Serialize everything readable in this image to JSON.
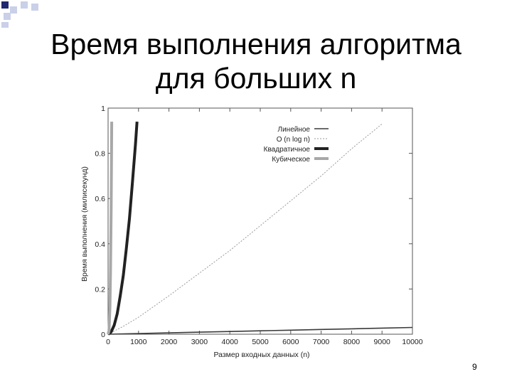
{
  "slide": {
    "title_line1": "Время выполнения алгоритма",
    "title_line2": "для больших n",
    "page_number": "9"
  },
  "colors": {
    "square_dark": "#1f2a6e",
    "square_light": "#c9d0e8",
    "linear": "#3a3a3a",
    "nlogn": "#9a9a9a",
    "quadratic": "#222222",
    "cubic": "#a8a8a8"
  },
  "chart_data": {
    "type": "line",
    "xlabel": "Размер входных данных (n)",
    "ylabel": "Время выполнения (милисекунд)",
    "xlim": [
      0,
      10000
    ],
    "ylim": [
      0,
      1
    ],
    "x_ticks": [
      "0",
      "1000",
      "2000",
      "3000",
      "4000",
      "5000",
      "6000",
      "7000",
      "8000",
      "9000",
      "10000"
    ],
    "y_ticks": [
      "0",
      "0.2",
      "0.4",
      "0.6",
      "0.8",
      "1"
    ],
    "legend_position": "top-right",
    "grid": false,
    "series": [
      {
        "name": "Линейное",
        "x": [
          0,
          1000,
          2000,
          3000,
          4000,
          5000,
          6000,
          7000,
          8000,
          9000,
          10000
        ],
        "y": [
          0,
          0.003,
          0.006,
          0.009,
          0.012,
          0.015,
          0.018,
          0.021,
          0.024,
          0.027,
          0.03
        ]
      },
      {
        "name": "O (n log n)",
        "x": [
          0,
          500,
          1000,
          2000,
          3000,
          4000,
          5000,
          6000,
          7000,
          8000,
          9000
        ],
        "y": [
          0,
          0.035,
          0.075,
          0.17,
          0.27,
          0.37,
          0.48,
          0.59,
          0.7,
          0.82,
          0.93
        ]
      },
      {
        "name": "Квадратичное",
        "x": [
          0,
          100,
          200,
          300,
          400,
          500,
          600,
          700,
          800,
          900,
          950
        ],
        "y": [
          0,
          0.01,
          0.04,
          0.09,
          0.17,
          0.26,
          0.38,
          0.51,
          0.67,
          0.84,
          0.94
        ]
      },
      {
        "name": "Кубическое",
        "x": [
          0,
          30,
          60,
          80,
          100,
          110,
          120
        ],
        "y": [
          0,
          0.015,
          0.12,
          0.28,
          0.55,
          0.73,
          0.94
        ]
      }
    ]
  }
}
